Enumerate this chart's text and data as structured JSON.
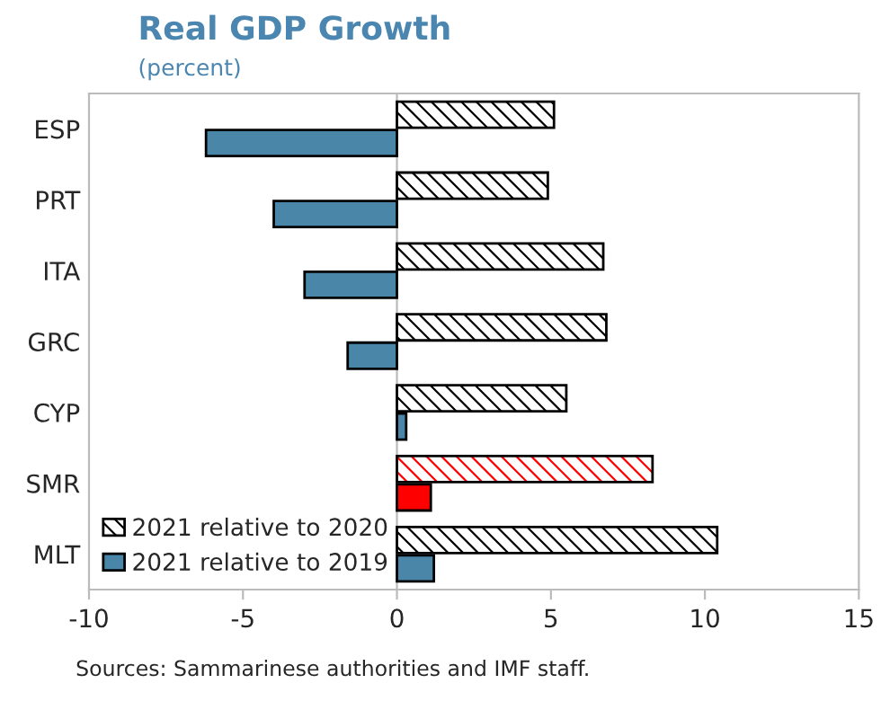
{
  "chart_data": {
    "type": "bar",
    "orientation": "horizontal",
    "title": "Real GDP Growth",
    "subtitle": "(percent)",
    "categories": [
      "ESP",
      "PRT",
      "ITA",
      "GRC",
      "CYP",
      "SMR",
      "MLT"
    ],
    "series": [
      {
        "name": "2021 relative to 2020",
        "color": "#000000",
        "colors": [
          "#000000",
          "#000000",
          "#000000",
          "#000000",
          "#000000",
          "#ff0000",
          "#000000"
        ],
        "values": [
          5.1,
          4.9,
          6.7,
          6.8,
          5.5,
          8.3,
          10.4
        ]
      },
      {
        "name": "2021 relative to 2019",
        "color": "#4a86a8",
        "colors": [
          "#4a86a8",
          "#4a86a8",
          "#4a86a8",
          "#4a86a8",
          "#4a86a8",
          "#ff0000",
          "#4a86a8"
        ],
        "values": [
          -6.2,
          -4.0,
          -3.0,
          -1.6,
          0.3,
          1.1,
          1.2
        ]
      }
    ],
    "xlim": [
      -10,
      15
    ],
    "xticks": [
      -10,
      -5,
      0,
      5,
      10,
      15
    ],
    "grid": false,
    "ref_lines": [
      {
        "axis": "x",
        "value": 0,
        "color": "#bbbbbb"
      }
    ],
    "legend": "bottom left",
    "annotations": [
      "Sources: Sammarinese authorities and IMF staff."
    ]
  }
}
